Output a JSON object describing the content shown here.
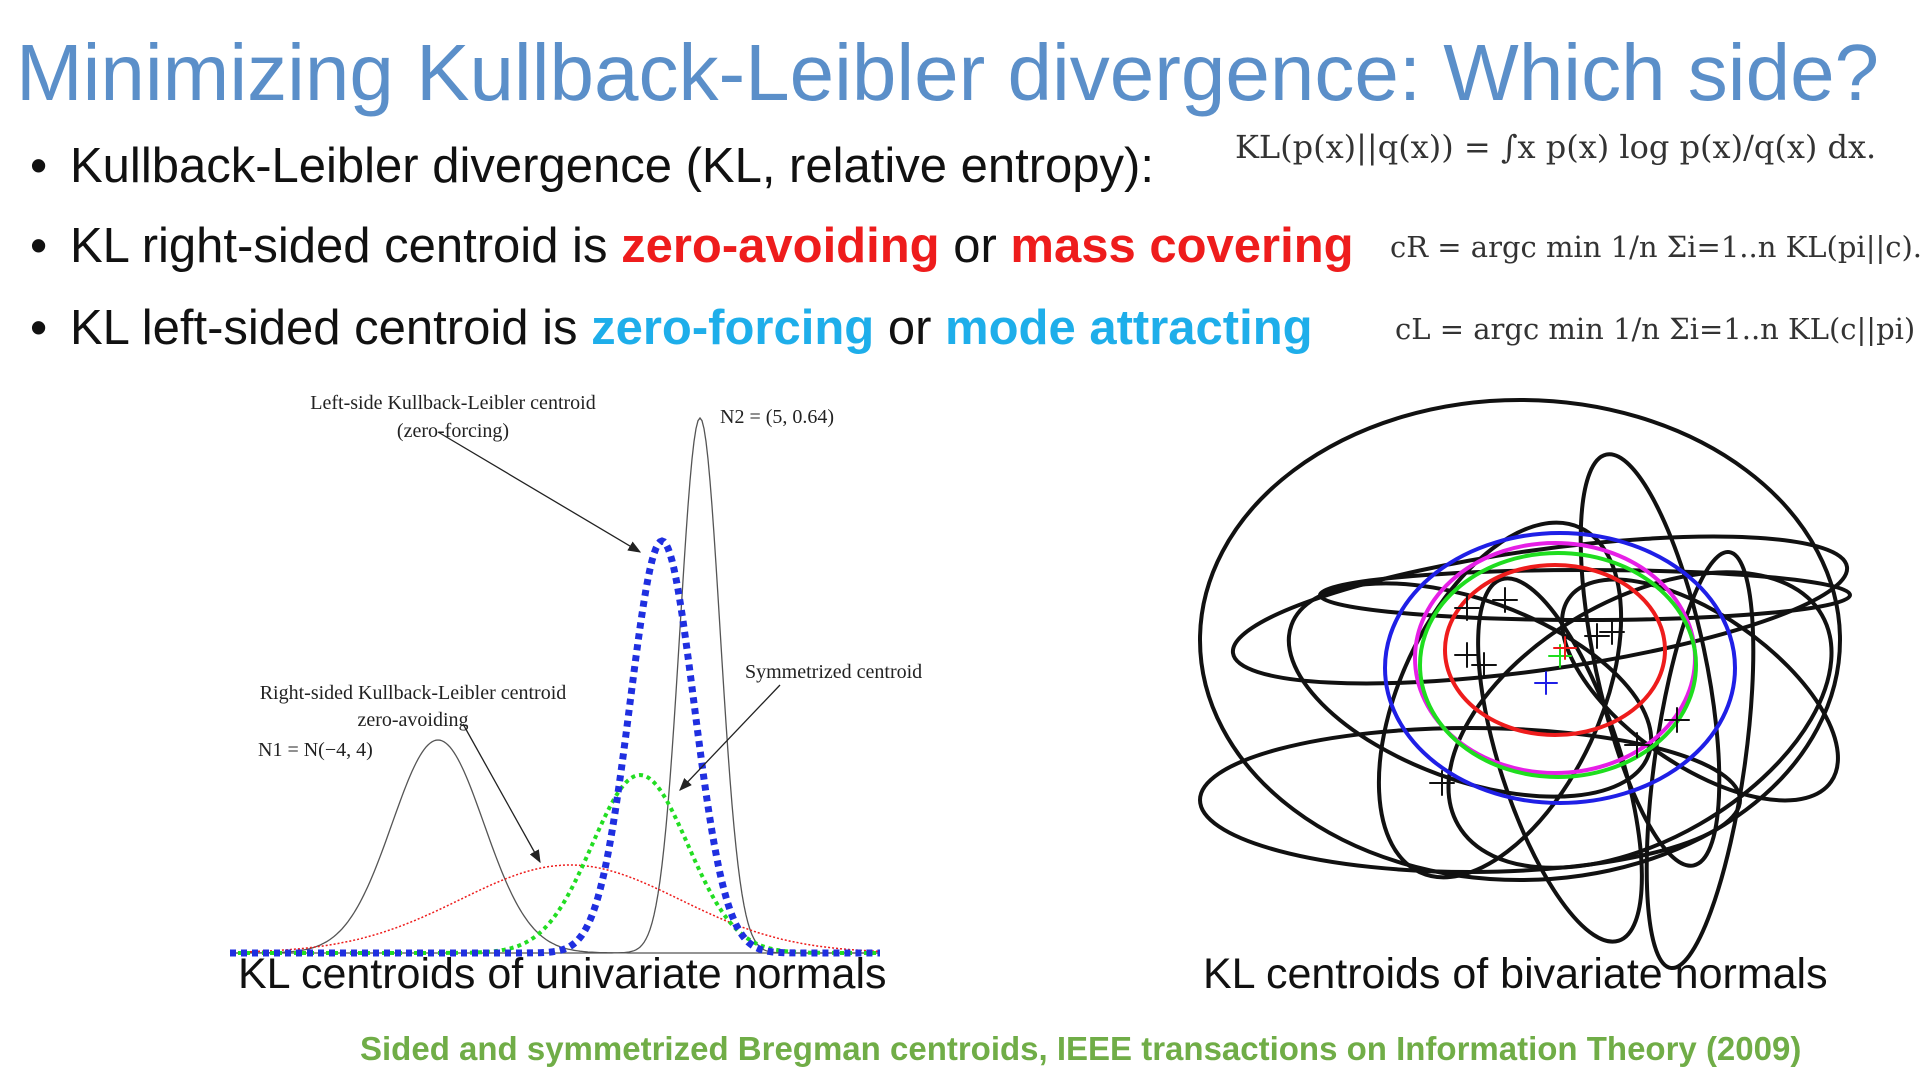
{
  "title": "Minimizing Kullback-Leibler divergence: Which side?",
  "bullets": [
    {
      "symbol": "•",
      "text": "Kullback-Leibler divergence (KL, relative entropy):",
      "formula": "KL(p(x)||q(x)) = ∫x p(x) log p(x)/q(x) dx."
    },
    {
      "symbol": "•",
      "prefix": "KL right-sided centroid is ",
      "term1": "zero-avoiding",
      "middle": " or ",
      "term2": "mass covering",
      "formula": "cR  =  argc min 1/n Σi=1..n KL(pi||c)."
    },
    {
      "symbol": "•",
      "prefix": "KL left-sided centroid is ",
      "term1": "zero-forcing",
      "middle": " or ",
      "term2": "mode attracting",
      "formula": "cL = argc min 1/n Σi=1..n KL(c||pi)"
    }
  ],
  "figure_left": {
    "annotations": {
      "left_centroid_line1": "Left-side Kullback-Leibler centroid",
      "left_centroid_line2": "(zero-forcing)",
      "n2": "N2 = (5, 0.64)",
      "symmetrized": "Symmetrized centroid",
      "right_centroid_line1": "Right-sided Kullback-Leibler centroid",
      "right_centroid_line2": "zero-avoiding",
      "n1": "N1 = N(−4, 4)"
    },
    "caption": "KL centroids of univariate normals"
  },
  "figure_right": {
    "caption": "KL centroids of bivariate normals"
  },
  "citation": "Sided and symmetrized Bregman centroids, IEEE transactions on Information Theory (2009)",
  "colors": {
    "title": "#5b8fc9",
    "emphasis_red": "#ee1c1c",
    "emphasis_cyan": "#1eaeea",
    "citation": "#70ad47",
    "left_centroid": "#1f2fe0",
    "symmetrized": "#22dd22",
    "right_centroid": "#ee1c1c"
  }
}
